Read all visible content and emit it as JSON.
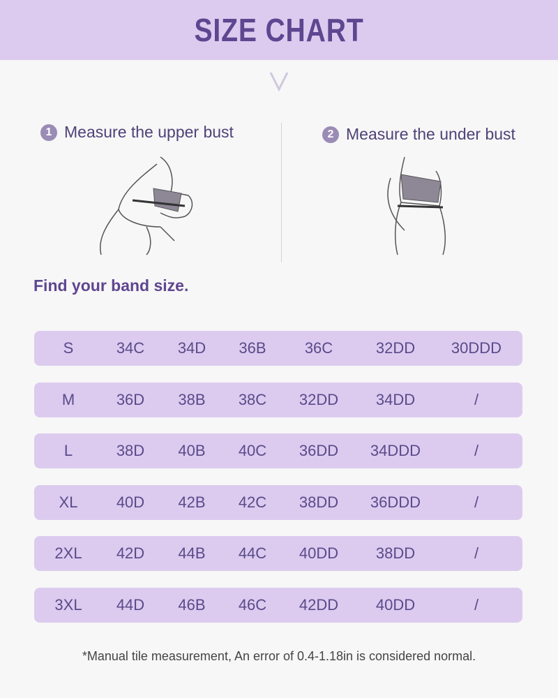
{
  "header": {
    "title": "SIZE CHART"
  },
  "steps": [
    {
      "number": "1",
      "label": "Measure the upper bust"
    },
    {
      "number": "2",
      "label": "Measure the under bust"
    }
  ],
  "subtitle": "Find your band size.",
  "table": {
    "rows": [
      [
        "S",
        "34C",
        "34D",
        "36B",
        "36C",
        "32DD",
        "30DDD"
      ],
      [
        "M",
        "36D",
        "38B",
        "38C",
        "32DD",
        "34DD",
        "/"
      ],
      [
        "L",
        "38D",
        "40B",
        "40C",
        "36DD",
        "34DDD",
        "/"
      ],
      [
        "XL",
        "40D",
        "42B",
        "42C",
        "38DD",
        "36DDD",
        "/"
      ],
      [
        "2XL",
        "42D",
        "44B",
        "44C",
        "40DD",
        "38DD",
        "/"
      ],
      [
        "3XL",
        "44D",
        "46B",
        "46C",
        "42DD",
        "40DD",
        "/"
      ]
    ]
  },
  "note": "*Manual tile measurement, An error of 0.4-1.18in is considered normal.",
  "colors": {
    "header_bg": "#dccbef",
    "title": "#5e4690",
    "row_bg": "#dccbef",
    "text": "#5a4a8a"
  }
}
